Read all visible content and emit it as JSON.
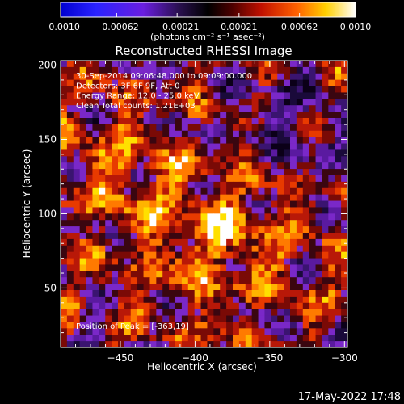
{
  "chart_data": {
    "type": "heatmap",
    "title": "Reconstructed RHESSI Image",
    "xlabel": "Heliocentric X (arcsec)",
    "ylabel": "Heliocentric Y (arcsec)",
    "xlim": [
      -490,
      -298
    ],
    "ylim": [
      10,
      203
    ],
    "x_ticks": [
      -450,
      -400,
      -350,
      -300
    ],
    "x_tick_labels": [
      "−450",
      "−400",
      "−350",
      "−300"
    ],
    "y_ticks": [
      50,
      100,
      150,
      200
    ],
    "y_tick_labels": [
      "50",
      "100",
      "150",
      "200"
    ],
    "colorbar": {
      "vmin": -0.001,
      "vmax": 0.001,
      "ticks": [
        -0.001,
        -0.00062,
        -0.00021,
        0.00021,
        0.00062,
        0.001
      ],
      "tick_labels": [
        "−0.0010",
        "−0.00062",
        "−0.00021",
        "0.00021",
        "0.00062",
        "0.0010"
      ],
      "unit_label": "(photons cm⁻² s⁻¹ asec⁻²)"
    },
    "annotations": [
      "30-Sep-2014 09:06:48.000 to 09:09:00.000",
      "Detectors: 3F 6F 9F, Att 0",
      "Energy Range: 12.0 - 25.0 keV",
      "Clean    Total counts: 1.21E+03",
      "Position of Peak = [-363,19]"
    ],
    "grid": false
  },
  "footer": {
    "date": "17-May-2022 17:48"
  }
}
